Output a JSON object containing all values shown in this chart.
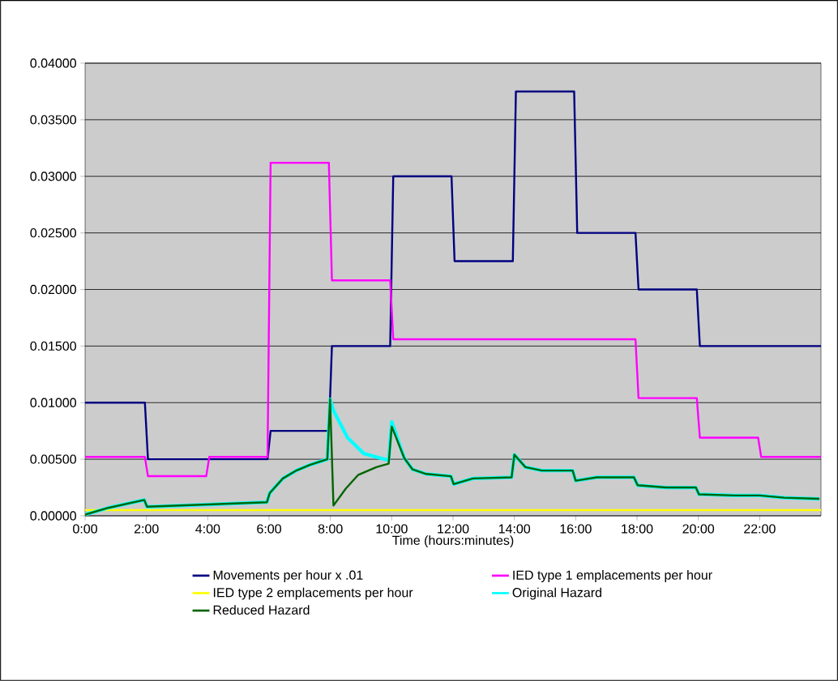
{
  "chart_data": {
    "type": "line",
    "xlabel": "Time (hours:minutes)",
    "xlim": [
      0,
      24
    ],
    "xticks": [
      {
        "value": 0,
        "label": "0:00"
      },
      {
        "value": 2,
        "label": "2:00"
      },
      {
        "value": 4,
        "label": "4:00"
      },
      {
        "value": 6,
        "label": "6:00"
      },
      {
        "value": 8,
        "label": "8:00"
      },
      {
        "value": 10,
        "label": "10:00"
      },
      {
        "value": 12,
        "label": "12:00"
      },
      {
        "value": 14,
        "label": "14:00"
      },
      {
        "value": 16,
        "label": "16:00"
      },
      {
        "value": 18,
        "label": "18:00"
      },
      {
        "value": 20,
        "label": "20:00"
      },
      {
        "value": 22,
        "label": "22:00"
      }
    ],
    "ylim": [
      0,
      0.04
    ],
    "yticks": [
      {
        "value": 0,
        "label": "0.00000"
      },
      {
        "value": 0.005,
        "label": "0.00500"
      },
      {
        "value": 0.01,
        "label": "0.01000"
      },
      {
        "value": 0.015,
        "label": "0.01500"
      },
      {
        "value": 0.02,
        "label": "0.02000"
      },
      {
        "value": 0.025,
        "label": "0.02500"
      },
      {
        "value": 0.03,
        "label": "0.03000"
      },
      {
        "value": 0.035,
        "label": "0.03500"
      },
      {
        "value": 0.04,
        "label": "0.04000"
      }
    ],
    "grid": "y",
    "legend": "bottom",
    "series": [
      {
        "name": "Movements per hour x .01",
        "color": "#000080",
        "x": [
          0,
          1.95,
          2.05,
          5.95,
          6.05,
          7.95,
          8.05,
          9.95,
          10.05,
          11.95,
          12.05,
          13.95,
          14.05,
          15.95,
          16.05,
          17.95,
          18.05,
          19.95,
          20.05,
          24
        ],
        "values": [
          0.01,
          0.01,
          0.005,
          0.005,
          0.0075,
          0.0075,
          0.015,
          0.015,
          0.03,
          0.03,
          0.0225,
          0.0225,
          0.0375,
          0.0375,
          0.025,
          0.025,
          0.02,
          0.02,
          0.015,
          0.015
        ]
      },
      {
        "name": "IED type 1 emplacements per hour",
        "color": "#ff00ff",
        "x": [
          0,
          1.95,
          2.05,
          3.95,
          4.05,
          5.95,
          6.05,
          7.95,
          8.05,
          9.95,
          10.05,
          17.95,
          18.05,
          19.95,
          20.05,
          21.95,
          22.05,
          24
        ],
        "values": [
          0.0052,
          0.0052,
          0.0035,
          0.0035,
          0.0052,
          0.0052,
          0.0312,
          0.0312,
          0.0208,
          0.0208,
          0.0156,
          0.0156,
          0.0104,
          0.0104,
          0.0069,
          0.0069,
          0.0052,
          0.0052
        ]
      },
      {
        "name": "IED type 2 emplacements per hour",
        "color": "#ffff00",
        "x": [
          0,
          24
        ],
        "values": [
          0.0005,
          0.0005
        ]
      },
      {
        "name": "Original Hazard",
        "color": "#00ffff",
        "x": [
          0,
          0.75,
          1.93,
          2.02,
          4.0,
          5.93,
          6.02,
          6.45,
          6.89,
          7.33,
          7.9,
          7.99,
          8.1,
          8.56,
          9.09,
          9.9,
          10.0,
          10.41,
          10.68,
          11.12,
          11.93,
          12.02,
          12.65,
          13.91,
          14.0,
          14.36,
          14.9,
          15.9,
          16.0,
          16.69,
          17.9,
          18.02,
          18.94,
          19.92,
          20.02,
          21.18,
          21.94,
          22.0,
          22.8,
          23.95
        ],
        "values": [
          0.0001,
          0.0007,
          0.0014,
          0.0008,
          0.001,
          0.0012,
          0.002,
          0.0033,
          0.004,
          0.0045,
          0.005,
          0.0103,
          0.0093,
          0.0069,
          0.0055,
          0.0049,
          0.0083,
          0.0051,
          0.0041,
          0.0037,
          0.0035,
          0.0028,
          0.0033,
          0.0034,
          0.0054,
          0.0043,
          0.004,
          0.004,
          0.0031,
          0.0034,
          0.0034,
          0.0027,
          0.0025,
          0.0025,
          0.0019,
          0.0018,
          0.0018,
          0.0018,
          0.0016,
          0.0015
        ]
      },
      {
        "name": "Reduced Hazard",
        "color": "#006400",
        "x": [
          0,
          0.75,
          1.93,
          2.02,
          4.0,
          5.93,
          6.02,
          6.45,
          6.89,
          7.33,
          7.9,
          7.99,
          8.1,
          8.5,
          8.9,
          9.5,
          9.9,
          10.0,
          10.41,
          10.68,
          11.12,
          11.93,
          12.02,
          12.65,
          13.91,
          14.0,
          14.36,
          14.9,
          15.9,
          16.0,
          16.69,
          17.9,
          18.02,
          18.94,
          19.92,
          20.02,
          21.18,
          21.94,
          22.0,
          22.8,
          23.95
        ],
        "values": [
          0.0001,
          0.0007,
          0.0014,
          0.0008,
          0.001,
          0.0012,
          0.002,
          0.0033,
          0.004,
          0.0045,
          0.005,
          0.0103,
          0.0009,
          0.0024,
          0.0036,
          0.0043,
          0.0046,
          0.0079,
          0.0051,
          0.0041,
          0.0037,
          0.0035,
          0.0028,
          0.0033,
          0.0034,
          0.0054,
          0.0043,
          0.004,
          0.004,
          0.0031,
          0.0034,
          0.0034,
          0.0027,
          0.0025,
          0.0025,
          0.0019,
          0.0018,
          0.0018,
          0.0018,
          0.0016,
          0.0015
        ]
      }
    ]
  }
}
